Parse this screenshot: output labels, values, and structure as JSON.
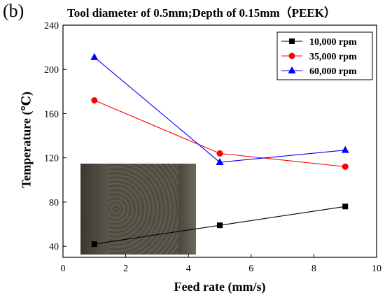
{
  "panel_label": "(b)",
  "chart_data": {
    "type": "line",
    "title": "Tool diameter of 0.5mm;Depth of 0.15mm（PEEK）",
    "xlabel": "Feed rate (mm/s)",
    "ylabel": "Temperature (℃)",
    "xlim": [
      0,
      10
    ],
    "ylim": [
      30,
      240
    ],
    "x_ticks": [
      "0",
      "2",
      "4",
      "6",
      "8",
      "10"
    ],
    "y_ticks": [
      "40",
      "80",
      "120",
      "160",
      "200",
      "240"
    ],
    "x": [
      1,
      5,
      9
    ],
    "series": [
      {
        "name": "10,000 rpm",
        "values": [
          42,
          59,
          76
        ],
        "color": "#000000",
        "marker": "square"
      },
      {
        "name": "35,000 rpm",
        "values": [
          172,
          124,
          112
        ],
        "color": "#ff0000",
        "marker": "circle"
      },
      {
        "name": "60,000 rpm",
        "values": [
          211,
          116,
          127
        ],
        "color": "#0000ff",
        "marker": "triangle"
      }
    ],
    "legend_position": "top-right",
    "grid": false,
    "inset_image": "micrograph of machined surface (bottom-left)"
  }
}
